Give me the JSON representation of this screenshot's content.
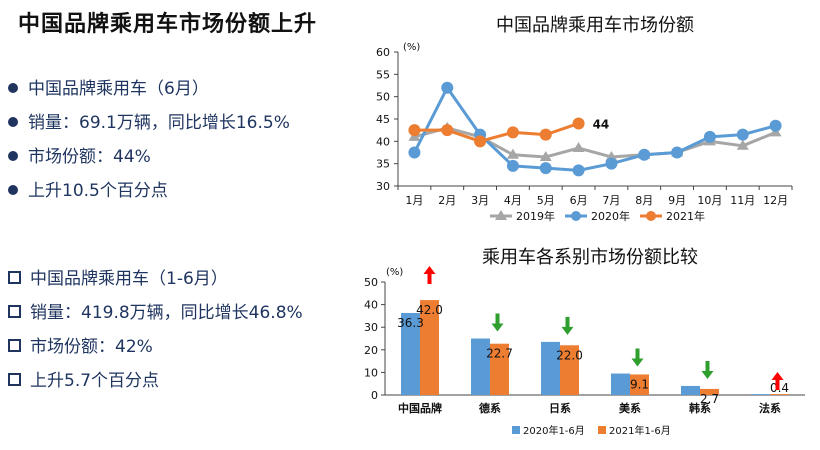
{
  "page_title": "中国品牌乘用车市场份额上升",
  "bullets_june": [
    "中国品牌乘用车（6月）",
    "销量：69.1万辆，同比增长16.5%",
    "市场份额：44%",
    "上升10.5个百分点"
  ],
  "bullets_h1": [
    "中国品牌乘用车（1-6月）",
    "销量：419.8万辆，同比增长46.8%",
    "市场份额：42%",
    "上升5.7个百分点"
  ],
  "chart_data": [
    {
      "type": "line",
      "title": "中国品牌乘用车市场份额",
      "ylabel": "(%)",
      "categories": [
        "1月",
        "2月",
        "3月",
        "4月",
        "5月",
        "6月",
        "7月",
        "8月",
        "9月",
        "10月",
        "11月",
        "12月"
      ],
      "ylim": [
        30,
        60
      ],
      "yticks": [
        30,
        35,
        40,
        45,
        50,
        55,
        60
      ],
      "legend_position": "bottom",
      "series": [
        {
          "name": "2019年",
          "color": "#a6a6a6",
          "marker": "triangle",
          "values": [
            41,
            43,
            41,
            37,
            36.5,
            38.5,
            36.5,
            37,
            37.5,
            40,
            39,
            42
          ]
        },
        {
          "name": "2020年",
          "color": "#5b9bd5",
          "marker": "circle",
          "values": [
            37.5,
            52,
            41.5,
            34.5,
            34,
            33.5,
            35,
            37,
            37.5,
            41,
            41.5,
            43.5
          ]
        },
        {
          "name": "2021年",
          "color": "#ed7d31",
          "marker": "circle",
          "values": [
            42.5,
            42.5,
            40,
            42,
            41.5,
            44,
            null,
            null,
            null,
            null,
            null,
            null
          ]
        }
      ],
      "annotations": [
        {
          "text": "44",
          "category": "6月"
        }
      ]
    },
    {
      "type": "bar",
      "title": "乘用车各系别市场份额比较",
      "ylabel": "(%)",
      "categories": [
        "中国品牌",
        "德系",
        "日系",
        "美系",
        "韩系",
        "法系"
      ],
      "ylim": [
        0,
        50
      ],
      "yticks": [
        0,
        10,
        20,
        30,
        40,
        50
      ],
      "legend_position": "bottom",
      "series": [
        {
          "name": "2020年1-6月",
          "color": "#5b9bd5",
          "values": [
            36.3,
            25,
            23.5,
            9.5,
            4,
            0.4
          ]
        },
        {
          "name": "2021年1-6月",
          "color": "#ed7d31",
          "values": [
            42.0,
            22.7,
            22.0,
            9.1,
            2.7,
            0.4
          ]
        }
      ],
      "data_labels": [
        "36.3",
        "42.0",
        "22.7",
        "22.0",
        "9.1",
        "2.7",
        "0.4"
      ],
      "trend_arrows": [
        "up",
        "down",
        "down",
        "down",
        "down",
        "up"
      ],
      "arrow_colors": {
        "up": "#ff0000",
        "down": "#2e9e2e"
      }
    }
  ]
}
